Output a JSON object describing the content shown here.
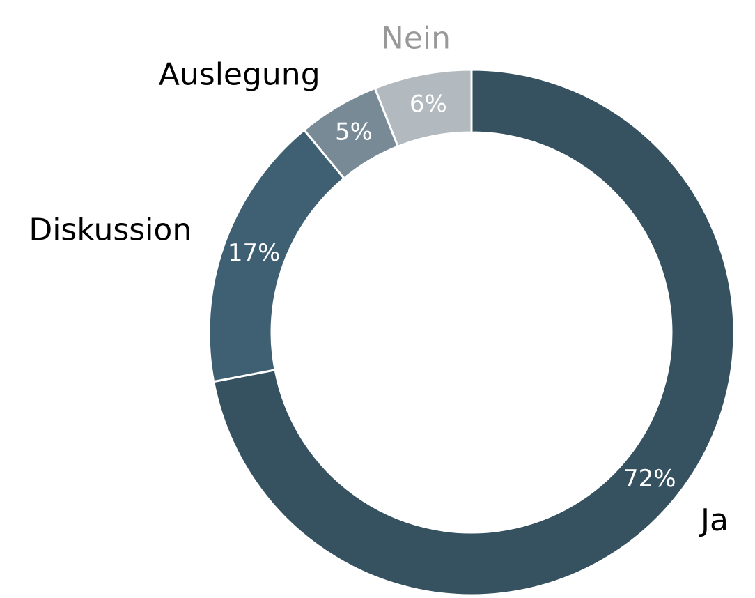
{
  "chart_data": {
    "type": "donut",
    "categories": [
      "Ja",
      "Diskussion",
      "Auslegung",
      "Nein"
    ],
    "values": [
      72,
      17,
      5,
      6
    ],
    "value_labels": [
      "72%",
      "17%",
      "5%",
      "6%"
    ],
    "colors": [
      "#36515f",
      "#3f6073",
      "#778a96",
      "#b2babf"
    ],
    "label_colors": [
      "#000000",
      "#000000",
      "#000000",
      "#999999"
    ]
  }
}
